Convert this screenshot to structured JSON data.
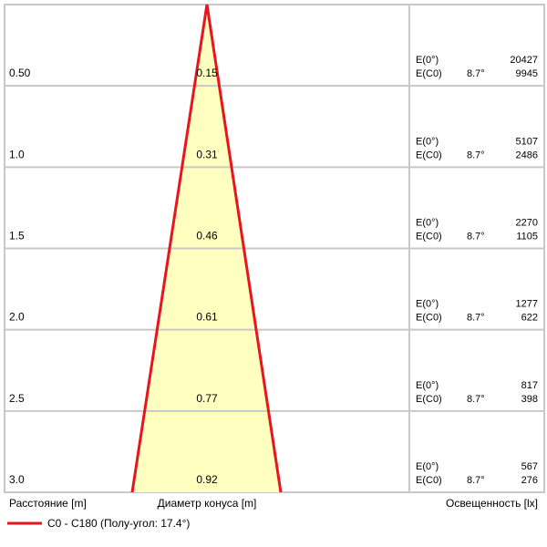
{
  "rows": [
    {
      "distance": "0.50",
      "diameter": "0.15",
      "e0_label": "E(0°)",
      "e0": "20427",
      "ec0_label": "E(C0)",
      "angle": "8.7°",
      "ec0": "9945"
    },
    {
      "distance": "1.0",
      "diameter": "0.31",
      "e0_label": "E(0°)",
      "e0": "5107",
      "ec0_label": "E(C0)",
      "angle": "8.7°",
      "ec0": "2486"
    },
    {
      "distance": "1.5",
      "diameter": "0.46",
      "e0_label": "E(0°)",
      "e0": "2270",
      "ec0_label": "E(C0)",
      "angle": "8.7°",
      "ec0": "1105"
    },
    {
      "distance": "2.0",
      "diameter": "0.61",
      "e0_label": "E(0°)",
      "e0": "1277",
      "ec0_label": "E(C0)",
      "angle": "8.7°",
      "ec0": "622"
    },
    {
      "distance": "2.5",
      "diameter": "0.77",
      "e0_label": "E(0°)",
      "e0": "817",
      "ec0_label": "E(C0)",
      "angle": "8.7°",
      "ec0": "398"
    },
    {
      "distance": "3.0",
      "diameter": "0.92",
      "e0_label": "E(0°)",
      "e0": "567",
      "ec0_label": "E(C0)",
      "angle": "8.7°",
      "ec0": "276"
    }
  ],
  "footer": {
    "distance_label": "Расстояние [m]",
    "diameter_label": "Диаметр конуса [m]",
    "illuminance_label": "Освещенность [lx]"
  },
  "legend": {
    "label": "C0 - C180 (Полу-угол: 17.4°)"
  }
}
